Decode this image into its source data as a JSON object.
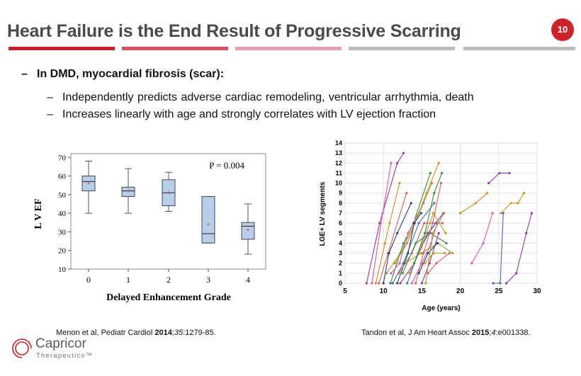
{
  "header": {
    "title": "Heart Failure is the End Result of Progressive Scarring",
    "slide_number": "10",
    "accent_colors": [
      "#c8222f",
      "#d7515e",
      "#e3a2a9",
      "#bdbdbd",
      "#bdbdbd"
    ]
  },
  "bullets": {
    "main": "In DMD, myocardial fibrosis (scar):",
    "sub": [
      "Independently  predicts adverse cardiac remodeling, ventricular  arrhythmia,  death",
      "Increases linearly with age and strongly correlates with LV ejection fraction"
    ],
    "dash": "–"
  },
  "chart_data": [
    {
      "type": "box",
      "title": "",
      "annotation": "P = 0.004",
      "xlabel": "Delayed Enhancement Grade",
      "ylabel": "L V EF",
      "categories": [
        "0",
        "1",
        "2",
        "3",
        "4"
      ],
      "yticks": [
        "10",
        "20",
        "30",
        "40",
        "50",
        "60",
        "70"
      ],
      "ylim": [
        10,
        72
      ],
      "boxes": [
        {
          "min": 40,
          "q1": 52,
          "median": 57,
          "q3": 60,
          "max": 68,
          "mean": 56
        },
        {
          "min": 40,
          "q1": 49,
          "median": 52,
          "q3": 54,
          "max": 64,
          "mean": 52
        },
        {
          "min": 41,
          "q1": 44,
          "median": 51,
          "q3": 58,
          "max": 62,
          "mean": 51
        },
        {
          "min": 24,
          "q1": 24,
          "median": 29,
          "q3": 49,
          "max": 49,
          "mean": 34
        },
        {
          "min": 18,
          "q1": 26,
          "median": 33,
          "q3": 35,
          "max": 45,
          "mean": 31
        }
      ],
      "box_color": "#b7cde8",
      "mean_color": "#cc3333",
      "grid": false
    },
    {
      "type": "line",
      "title": "",
      "xlabel": "Age (years)",
      "ylabel": "LGE+ LV segments",
      "xticks": [
        "5",
        "10",
        "15",
        "20",
        "25",
        "30"
      ],
      "yticks": [
        "0",
        "1",
        "2",
        "3",
        "4",
        "5",
        "6",
        "7",
        "8",
        "9",
        "10",
        "11",
        "12",
        "13",
        "14"
      ],
      "xlim": [
        5,
        30
      ],
      "ylim": [
        0,
        14
      ],
      "grid": true,
      "series": [
        {
          "color": "#8b3a9e",
          "points": [
            [
              7.8,
              0
            ],
            [
              9.5,
              6
            ],
            [
              11.8,
              12
            ],
            [
              12.6,
              13
            ]
          ]
        },
        {
          "color": "#d85aa8",
          "points": [
            [
              8.5,
              0
            ],
            [
              9.9,
              7
            ],
            [
              11.0,
              12
            ]
          ]
        },
        {
          "color": "#c89020",
          "points": [
            [
              9.0,
              0
            ],
            [
              10.2,
              4
            ],
            [
              10.8,
              6
            ],
            [
              12.1,
              10
            ]
          ]
        },
        {
          "color": "#d46060",
          "points": [
            [
              9.4,
              0
            ],
            [
              10.6,
              3
            ],
            [
              13.0,
              9
            ]
          ]
        },
        {
          "color": "#28406e",
          "points": [
            [
              10.0,
              0
            ],
            [
              10.7,
              3
            ],
            [
              11.8,
              5
            ],
            [
              13.6,
              8
            ]
          ]
        },
        {
          "color": "#9c9c3c",
          "points": [
            [
              10.4,
              1
            ],
            [
              12.2,
              3
            ],
            [
              14.1,
              6
            ],
            [
              16.3,
              10
            ]
          ]
        },
        {
          "color": "#3c8c3c",
          "points": [
            [
              10.9,
              0
            ],
            [
              12.6,
              4
            ],
            [
              13.9,
              6
            ],
            [
              16.1,
              11
            ]
          ]
        },
        {
          "color": "#d85aa8",
          "points": [
            [
              11.0,
              1
            ],
            [
              12.1,
              2
            ],
            [
              13.2,
              5
            ],
            [
              15.2,
              8
            ]
          ]
        },
        {
          "color": "#4a66b0",
          "points": [
            [
              11.2,
              0
            ],
            [
              12.6,
              2
            ],
            [
              14.6,
              6
            ],
            [
              16.6,
              8
            ]
          ]
        },
        {
          "color": "#c89020",
          "points": [
            [
              11.5,
              2
            ],
            [
              13.1,
              4
            ],
            [
              15.6,
              9
            ],
            [
              17.2,
              12
            ]
          ]
        },
        {
          "color": "#28406e",
          "points": [
            [
              11.8,
              0
            ],
            [
              13.2,
              3
            ],
            [
              14.0,
              6
            ],
            [
              14.9,
              7
            ]
          ]
        },
        {
          "color": "#d46060",
          "points": [
            [
              12.0,
              1
            ],
            [
              13.7,
              3
            ],
            [
              15.3,
              6
            ],
            [
              17.7,
              6
            ]
          ]
        },
        {
          "color": "#8b3a9e",
          "points": [
            [
              12.2,
              0
            ],
            [
              14.0,
              2
            ],
            [
              15.8,
              5
            ],
            [
              17.8,
              7
            ]
          ]
        },
        {
          "color": "#3c8c3c",
          "points": [
            [
              12.5,
              1
            ],
            [
              14.2,
              4
            ],
            [
              16.1,
              5
            ],
            [
              18.2,
              4
            ]
          ]
        },
        {
          "color": "#9c9c3c",
          "points": [
            [
              12.9,
              2
            ],
            [
              14.9,
              3
            ],
            [
              17.1,
              4
            ],
            [
              19.0,
              3
            ]
          ]
        },
        {
          "color": "#4a66b0",
          "points": [
            [
              13.1,
              0
            ],
            [
              14.5,
              3
            ],
            [
              15.9,
              5
            ],
            [
              16.8,
              6
            ]
          ]
        },
        {
          "color": "#c89020",
          "points": [
            [
              13.4,
              1
            ],
            [
              15.1,
              4
            ],
            [
              16.5,
              7
            ],
            [
              18.1,
              5
            ]
          ]
        },
        {
          "color": "#d85aa8",
          "points": [
            [
              13.7,
              0
            ],
            [
              15.0,
              2
            ],
            [
              16.2,
              4
            ],
            [
              17.0,
              6
            ]
          ]
        },
        {
          "color": "#3c8c3c",
          "points": [
            [
              14.0,
              2
            ],
            [
              15.4,
              5
            ],
            [
              16.6,
              9
            ],
            [
              17.6,
              11
            ]
          ]
        },
        {
          "color": "#d46060",
          "points": [
            [
              14.2,
              0
            ],
            [
              15.2,
              3
            ],
            [
              16.4,
              6
            ],
            [
              17.5,
              10
            ]
          ]
        },
        {
          "color": "#28406e",
          "points": [
            [
              14.6,
              1
            ],
            [
              15.8,
              3
            ],
            [
              17.0,
              4
            ]
          ]
        },
        {
          "color": "#8b3a9e",
          "points": [
            [
              15.0,
              0
            ],
            [
              16.0,
              2
            ],
            [
              17.2,
              5
            ]
          ]
        },
        {
          "color": "#c89020",
          "points": [
            [
              15.4,
              2
            ],
            [
              16.5,
              3
            ],
            [
              18.0,
              3
            ]
          ]
        },
        {
          "color": "#d46060",
          "points": [
            [
              15.8,
              1
            ],
            [
              16.9,
              2
            ],
            [
              18.6,
              3
            ]
          ]
        },
        {
          "color": "#9c9c3c",
          "points": [
            [
              15.5,
              0
            ],
            [
              16.4,
              5
            ],
            [
              17.9,
              7
            ]
          ]
        },
        {
          "color": "#c89020",
          "points": [
            [
              20.0,
              7
            ],
            [
              22.0,
              8
            ],
            [
              23.5,
              9
            ]
          ]
        },
        {
          "color": "#d85aa8",
          "points": [
            [
              21.5,
              2
            ],
            [
              23.0,
              4
            ],
            [
              24.2,
              7
            ]
          ]
        },
        {
          "color": "#8b3a9e",
          "points": [
            [
              23.7,
              10
            ],
            [
              25.1,
              11
            ],
            [
              26.4,
              11
            ]
          ]
        },
        {
          "color": "#4a66b0",
          "points": [
            [
              24.3,
              0
            ],
            [
              25.2,
              0
            ],
            [
              25.6,
              7
            ]
          ]
        },
        {
          "color": "#c89020",
          "points": [
            [
              25.3,
              7
            ],
            [
              26.6,
              8
            ],
            [
              27.5,
              8
            ],
            [
              28.3,
              9
            ]
          ]
        },
        {
          "color": "#8b3a9e",
          "points": [
            [
              26.0,
              0
            ],
            [
              27.3,
              1
            ],
            [
              28.6,
              5
            ],
            [
              29.3,
              7
            ]
          ]
        }
      ]
    }
  ],
  "citations": {
    "left": {
      "text": "Menon et al, Pediatr Cardiol ",
      "year": "2014",
      "sep": ";",
      "vol": "35",
      "pages": ":1279-85."
    },
    "right": {
      "text": "Tandon et al, J Am Heart Assoc ",
      "year": "2015",
      "sep": ";",
      "vol": "4",
      "pages": ":e001338."
    }
  },
  "logo": {
    "name": "Capricor",
    "sub": "Therapeutics",
    "tm": "™"
  }
}
